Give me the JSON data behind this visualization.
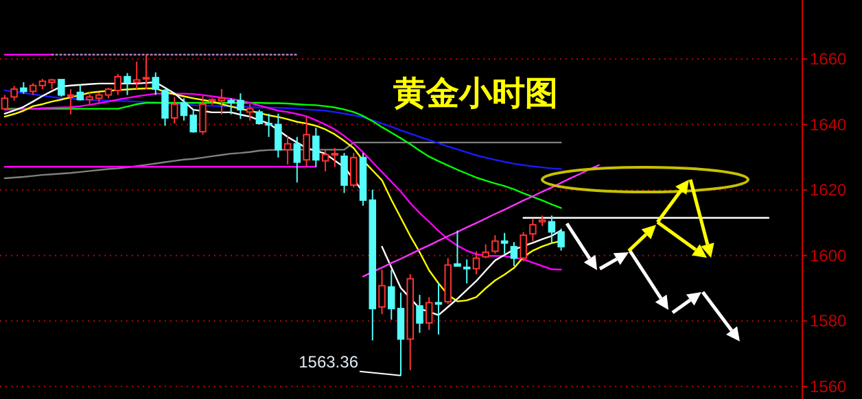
{
  "chart_data": {
    "type": "candlestick",
    "title": "黄金小时图",
    "categories": [
      null,
      null,
      null,
      null,
      null,
      null,
      null,
      null,
      null,
      null,
      null,
      null,
      null,
      null,
      null,
      null,
      null,
      null,
      null,
      null,
      null,
      null,
      null,
      null,
      null,
      null,
      null,
      null,
      null,
      null,
      null,
      null,
      null,
      null,
      null,
      null,
      null,
      null,
      null,
      null,
      null,
      null,
      null,
      null,
      null,
      null,
      null,
      null,
      null,
      null,
      null,
      null,
      null,
      null,
      null,
      null,
      null,
      null,
      null,
      null,
      null,
      null,
      null,
      null,
      null,
      null,
      null,
      null,
      null,
      null,
      null,
      null,
      null,
      null,
      null,
      null,
      null,
      null,
      null,
      null,
      null,
      null,
      null,
      null,
      null
    ],
    "ohlc": [
      [
        1644.8,
        1649.0,
        1644.5,
        1648.0
      ],
      [
        1648.4,
        1651.8,
        1647.3,
        1650.8
      ],
      [
        1651.1,
        1652.9,
        1649.4,
        1650.1
      ],
      [
        1650.1,
        1652.6,
        1649.0,
        1651.9
      ],
      [
        1651.9,
        1653.9,
        1650.8,
        1653.2
      ],
      [
        1652.9,
        1653.9,
        1650.8,
        1653.6
      ],
      [
        1653.7,
        1653.7,
        1648.5,
        1649.0
      ],
      [
        1648.6,
        1650.8,
        1643.1,
        1649.0
      ],
      [
        1649.8,
        1652.2,
        1647.3,
        1647.6
      ],
      [
        1647.6,
        1649.8,
        1645.9,
        1648.4
      ],
      [
        1648.0,
        1649.8,
        1646.8,
        1649.0
      ],
      [
        1649.0,
        1651.2,
        1648.0,
        1650.8
      ],
      [
        1650.4,
        1655.4,
        1649.0,
        1654.6
      ],
      [
        1654.6,
        1655.7,
        1649.0,
        1652.9
      ],
      [
        1652.9,
        1659.2,
        1650.8,
        1653.6
      ],
      [
        1653.9,
        1661.3,
        1650.8,
        1654.3
      ],
      [
        1654.3,
        1655.9,
        1649.0,
        1650.8
      ],
      [
        1650.4,
        1650.8,
        1639.6,
        1642.0
      ],
      [
        1642.0,
        1648.4,
        1640.3,
        1646.2
      ],
      [
        1646.6,
        1648.0,
        1641.2,
        1642.8
      ],
      [
        1642.8,
        1644.5,
        1637.5,
        1637.8
      ],
      [
        1637.8,
        1648.7,
        1636.9,
        1646.2
      ],
      [
        1647.3,
        1648.0,
        1646.0,
        1647.6
      ],
      [
        1647.3,
        1650.8,
        1643.1,
        1648.0
      ],
      [
        1647.3,
        1648.0,
        1643.1,
        1646.6
      ],
      [
        1647.3,
        1649.5,
        1641.7,
        1644.5
      ],
      [
        1643.8,
        1646.2,
        1641.2,
        1644.8
      ],
      [
        1643.8,
        1644.5,
        1640.0,
        1640.3
      ],
      [
        1640.3,
        1643.3,
        1636.2,
        1639.9
      ],
      [
        1640.0,
        1643.3,
        1629.9,
        1632.3
      ],
      [
        1632.3,
        1636.4,
        1627.8,
        1634.1
      ],
      [
        1634.1,
        1636.2,
        1622.3,
        1628.5
      ],
      [
        1629.2,
        1642.4,
        1627.1,
        1636.9
      ],
      [
        1636.4,
        1639.0,
        1627.1,
        1629.2
      ],
      [
        1628.9,
        1632.3,
        1625.7,
        1630.8
      ],
      [
        1630.8,
        1632.8,
        1627.0,
        1631.1
      ],
      [
        1630.3,
        1631.3,
        1619.1,
        1621.5
      ],
      [
        1621.5,
        1631.3,
        1620.8,
        1629.9
      ],
      [
        1629.9,
        1631.3,
        1615.2,
        1616.9
      ],
      [
        1616.9,
        1620.1,
        1574.1,
        1583.8
      ],
      [
        1584.3,
        1595.7,
        1582.1,
        1590.8
      ],
      [
        1590.4,
        1595.7,
        1580.4,
        1583.8
      ],
      [
        1583.8,
        1588.7,
        1563.36,
        1574.5
      ],
      [
        1574.5,
        1594.3,
        1565.0,
        1592.9
      ],
      [
        1584.6,
        1588.0,
        1576.4,
        1579.4
      ],
      [
        1579.4,
        1587.3,
        1577.3,
        1585.6
      ],
      [
        1585.6,
        1591.5,
        1575.9,
        1585.2
      ],
      [
        1585.9,
        1599.2,
        1585.2,
        1597.1
      ],
      [
        1597.4,
        1607.6,
        1596.8,
        1596.8
      ],
      [
        1596.4,
        1598.8,
        1591.5,
        1596.0
      ],
      [
        1596.0,
        1601.3,
        1594.3,
        1599.2
      ],
      [
        1599.6,
        1603.4,
        1599.2,
        1601.0
      ],
      [
        1601.3,
        1606.2,
        1600.6,
        1604.4
      ],
      [
        1604.4,
        1606.9,
        1600.6,
        1603.8
      ],
      [
        1602.7,
        1604.1,
        1596.8,
        1599.2
      ],
      [
        1599.2,
        1607.2,
        1598.2,
        1606.2
      ],
      [
        1606.6,
        1611.3,
        1604.4,
        1609.4
      ],
      [
        1610.3,
        1612.2,
        1609.0,
        1610.8
      ],
      [
        1610.3,
        1612.2,
        1603.8,
        1607.2
      ],
      [
        1607.2,
        1608.2,
        1601.5,
        1602.7
      ],
      null,
      null,
      null,
      null,
      null,
      null,
      null,
      null,
      null,
      null,
      null,
      null,
      null,
      null,
      null,
      null,
      null,
      null,
      null,
      null,
      null,
      null,
      null,
      null,
      null
    ],
    "colors": [
      "#ff3232",
      "#ff3232",
      "#54fcfc",
      "#ff3232",
      "#ff3232",
      "#ff3232",
      "#54fcfc",
      "#ff3232",
      "#54fcfc",
      "#ff3232",
      "#ff3232",
      "#ff3232",
      "#ff3232",
      "#54fcfc",
      "#ff3232",
      "#ff3232",
      "#54fcfc",
      "#54fcfc",
      "#ff3232",
      "#54fcfc",
      "#54fcfc",
      "#ff3232",
      "#ff3232",
      "#ff3232",
      "#54fcfc",
      "#54fcfc",
      "#ff3232",
      "#54fcfc",
      "#54fcfc",
      "#54fcfc",
      "#ff3232",
      "#54fcfc",
      "#ff3232",
      "#54fcfc",
      "#ff3232",
      "#ff3232",
      "#54fcfc",
      "#ff3232",
      "#54fcfc",
      "#54fcfc",
      "#ff3232",
      "#54fcfc",
      "#54fcfc",
      "#ff3232",
      "#54fcfc",
      "#ff3232",
      "#54fcfc",
      "#ff3232",
      "#54fcfc",
      "#54fcfc",
      "#ff3232",
      "#ff3232",
      "#ff3232",
      "#54fcfc",
      "#54fcfc",
      "#ff3232",
      "#ff3232",
      "#ff3232",
      "#54fcfc",
      "#54fcfc",
      null,
      null,
      null,
      null,
      null,
      null,
      null,
      null,
      null,
      null,
      null,
      null,
      null,
      null,
      null,
      null,
      null,
      null,
      null,
      null,
      null,
      null,
      null,
      null,
      null
    ],
    "series": [
      {
        "type": "line",
        "color": "#808080",
        "values": [
          1623.6,
          1623.8,
          1624.0,
          1624.3,
          1624.6,
          1624.8,
          1625.0,
          1625.2,
          1625.5,
          1625.8,
          1626.1,
          1626.4,
          1626.6,
          1626.9,
          1627.3,
          1627.7,
          1628.1,
          1628.5,
          1628.9,
          1629.3,
          1629.5,
          1629.9,
          1630.3,
          1630.7,
          1631.1,
          1631.3,
          1631.6,
          1632.0,
          1632.2,
          1632.3,
          1632.3,
          1632.3,
          1632.3,
          1632.3,
          1632.3,
          1632.3,
          1632.3,
          1634.5,
          1634.5,
          1634.5,
          1634.5,
          1634.5,
          1634.5,
          1634.5,
          1634.5,
          1634.5,
          1634.5,
          1634.5,
          1634.5,
          1634.5,
          1634.5,
          1634.5,
          1634.5,
          1634.5,
          1634.5,
          1634.5,
          1634.5,
          1634.5,
          1634.5,
          1634.5,
          null,
          null,
          null,
          null,
          null,
          null,
          null,
          null,
          null,
          null,
          null,
          null,
          null,
          null,
          null,
          null,
          null,
          null,
          null,
          null,
          null,
          null,
          null,
          null,
          null
        ]
      },
      {
        "type": "line",
        "color": "#ff00ff",
        "values": [
          1661.3,
          1661.3,
          1661.3,
          1661.3,
          1661.3,
          1661.3,
          null,
          null,
          null,
          null,
          null,
          null,
          null,
          null,
          null,
          null,
          null,
          null,
          null,
          null,
          null,
          null,
          null,
          null,
          null,
          null,
          null,
          null,
          null,
          null,
          null,
          null,
          null,
          null,
          null,
          null,
          null,
          null,
          null,
          null,
          null,
          null,
          null,
          null,
          null,
          null,
          null,
          null,
          null,
          null,
          null,
          null,
          null,
          null,
          null,
          null,
          null,
          null,
          null,
          null,
          null,
          null,
          null,
          null,
          null,
          null,
          null,
          null,
          null,
          null,
          null,
          null,
          null,
          null,
          null,
          null,
          null,
          null,
          null,
          null,
          null,
          null,
          null,
          null,
          null
        ]
      },
      {
        "type": "line",
        "color": "#b080c0",
        "line_style": "dotted",
        "values": [
          null,
          null,
          null,
          null,
          null,
          1661.3,
          1661.3,
          1661.3,
          1661.3,
          1661.3,
          1661.3,
          1661.3,
          1661.3,
          1661.3,
          1661.3,
          1661.3,
          1661.3,
          1661.3,
          1661.3,
          1661.3,
          1661.3,
          1661.3,
          1661.3,
          1661.3,
          1661.3,
          1661.3,
          1661.3,
          1661.3,
          1661.3,
          1661.3,
          1661.3,
          1661.3,
          null,
          null,
          null,
          null,
          null,
          null,
          null,
          null,
          null,
          null,
          null,
          null,
          null,
          null,
          null,
          null,
          null,
          null,
          null,
          null,
          null,
          null,
          null,
          null,
          null,
          null,
          null,
          null,
          null,
          null,
          null,
          null,
          null,
          null,
          null,
          null,
          null,
          null,
          null,
          null,
          null,
          null,
          null,
          null,
          null,
          null,
          null,
          null,
          null,
          null,
          null,
          null,
          null
        ]
      },
      {
        "type": "line",
        "color": "#ff00ff",
        "values": [
          1627.1,
          1627.1,
          1627.1,
          1627.1,
          1627.1,
          1627.1,
          1627.1,
          1627.1,
          1627.1,
          1627.1,
          1627.1,
          1627.1,
          1627.1,
          1627.1,
          1627.1,
          1627.1,
          1627.1,
          1627.1,
          1627.1,
          1627.1,
          1627.1,
          1627.1,
          1627.1,
          1627.1,
          1627.1,
          1627.1,
          1627.1,
          1627.1,
          1627.1,
          1627.1,
          1627.1,
          1627.1,
          1627.1,
          1627.1,
          null,
          null,
          null,
          null,
          null,
          null,
          null,
          null,
          null,
          null,
          null,
          null,
          null,
          null,
          null,
          null,
          null,
          null,
          null,
          null,
          null,
          null,
          null,
          null,
          null,
          null,
          null,
          null,
          null,
          null,
          null,
          null,
          null,
          null,
          null,
          null,
          null,
          null,
          null,
          null,
          null,
          null,
          null,
          null,
          null,
          null,
          null,
          null,
          null,
          null,
          null
        ]
      },
      {
        "type": "line",
        "color": "#1a1aff",
        "values": [
          1650.4,
          1650.0,
          1649.6,
          1649.2,
          1648.8,
          1648.4,
          1648.1,
          1647.9,
          1647.7,
          1647.5,
          1647.4,
          1647.3,
          1647.2,
          1647.1,
          1647.0,
          1646.9,
          1646.7,
          1646.5,
          1646.3,
          1646.1,
          1645.9,
          1645.8,
          1645.7,
          1645.6,
          1645.5,
          1645.4,
          1645.3,
          1645.2,
          1645.2,
          1645.1,
          1645.0,
          1644.8,
          1644.6,
          1644.4,
          1644.2,
          1643.8,
          1643.3,
          1642.8,
          1642.2,
          1641.3,
          1640.3,
          1639.3,
          1638.2,
          1637.2,
          1636.2,
          1635.3,
          1634.3,
          1633.3,
          1632.4,
          1631.5,
          1630.6,
          1629.9,
          1629.2,
          1628.6,
          1628.0,
          1627.6,
          1627.2,
          1626.9,
          1626.6,
          1626.4,
          null,
          null,
          null,
          null,
          null,
          null,
          null,
          null,
          null,
          null,
          null,
          null,
          null,
          null,
          null,
          null,
          null,
          null,
          null,
          null,
          null,
          null,
          null,
          null,
          null
        ]
      },
      {
        "type": "line",
        "color": "#00ff00",
        "values": [
          1644.8,
          1644.8,
          1644.8,
          1644.8,
          1644.8,
          1644.8,
          1644.8,
          1644.8,
          1644.8,
          1644.8,
          1644.8,
          1644.8,
          1644.8,
          1645.5,
          1646.2,
          1646.6,
          1646.6,
          1646.6,
          1646.6,
          1646.6,
          1646.6,
          1646.6,
          1646.6,
          1646.6,
          1646.6,
          1646.6,
          1646.6,
          1646.6,
          1646.5,
          1646.5,
          1646.4,
          1646.2,
          1646.0,
          1645.9,
          1645.6,
          1645.2,
          1644.6,
          1643.8,
          1642.6,
          1641.0,
          1639.2,
          1637.5,
          1635.8,
          1634.0,
          1632.0,
          1630.2,
          1628.8,
          1627.5,
          1626.2,
          1625.0,
          1623.8,
          1622.9,
          1622.0,
          1621.2,
          1620.2,
          1619.0,
          1617.9,
          1616.8,
          1615.6,
          1614.5,
          null,
          null,
          null,
          null,
          null,
          null,
          null,
          null,
          null,
          null,
          null,
          null,
          null,
          null,
          null,
          null,
          null,
          null,
          null,
          null,
          null,
          null,
          null,
          null,
          null
        ]
      },
      {
        "type": "line",
        "color": "#ff00ff",
        "values": [
          1644.5,
          1644.6,
          1644.7,
          1644.8,
          1645.0,
          1645.1,
          1645.2,
          1645.3,
          1645.6,
          1646.0,
          1646.5,
          1647.0,
          1647.6,
          1648.1,
          1648.6,
          1649.0,
          1649.4,
          1649.4,
          1649.4,
          1649.4,
          1649.3,
          1649.0,
          1648.6,
          1648.2,
          1647.8,
          1647.3,
          1646.6,
          1645.8,
          1645.0,
          1644.2,
          1643.8,
          1643.2,
          1642.5,
          1641.3,
          1640.0,
          1638.5,
          1636.5,
          1634.2,
          1631.5,
          1628.5,
          1625.5,
          1622.5,
          1619.5,
          1616.0,
          1613.0,
          1610.3,
          1607.5,
          1605.0,
          1603.0,
          1601.5,
          1600.4,
          1599.9,
          1599.9,
          1599.8,
          1599.4,
          1598.8,
          1597.8,
          1596.8,
          1595.8,
          1595.7,
          null,
          null,
          null,
          null,
          null,
          null,
          null,
          null,
          null,
          null,
          null,
          null,
          null,
          null,
          null,
          null,
          null,
          null,
          null,
          null,
          null,
          null,
          null,
          null,
          null
        ]
      },
      {
        "type": "line",
        "color": "#ffff00",
        "values": [
          1642.4,
          1643.2,
          1644.2,
          1645.6,
          1646.2,
          1647.0,
          1647.6,
          1648.3,
          1649.0,
          1649.7,
          1650.0,
          1650.3,
          1650.5,
          1650.7,
          1650.9,
          1651.0,
          1651.0,
          1650.0,
          1649.2,
          1648.6,
          1648.0,
          1647.5,
          1647.0,
          1646.2,
          1645.5,
          1644.8,
          1644.2,
          1643.5,
          1642.8,
          1642.3,
          1641.6,
          1640.8,
          1640.3,
          1639.6,
          1638.5,
          1637.0,
          1635.0,
          1632.8,
          1629.0,
          1626.0,
          1623.0,
          1617.0,
          1611.5,
          1606.0,
          1601.0,
          1595.5,
          1591.5,
          1588.0,
          1586.0,
          1586.3,
          1587.3,
          1590.0,
          1592.4,
          1594.2,
          1596.2,
          1599.5,
          1601.5,
          1602.8,
          1603.8,
          1604.4,
          null,
          null,
          null,
          null,
          null,
          null,
          null,
          null,
          null,
          null,
          null,
          null,
          null,
          null,
          null,
          null,
          null,
          null,
          null,
          null,
          null,
          null,
          null,
          null,
          null
        ]
      },
      {
        "type": "line",
        "color": "#ffffff",
        "values": [
          1643.3,
          1644.3,
          1645.4,
          1647.0,
          1648.7,
          1650.2,
          1651.6,
          1651.9,
          1652.1,
          1652.3,
          1652.5,
          1652.5,
          1652.5,
          1652.5,
          1652.5,
          1652.7,
          1652.9,
          1651.2,
          1649.5,
          1647.0,
          1644.5,
          1644.1,
          1643.7,
          1643.7,
          1643.7,
          1643.0,
          1642.4,
          1641.3,
          1640.3,
          1638.3,
          1636.2,
          1634.5,
          1632.8,
          1632.0,
          1631.1,
          1629.0,
          1627.0,
          1623.2,
          1619.4,
          null,
          1602.7,
          1596.4,
          1590.1,
          1587.0,
          1583.8,
          1582.8,
          1581.8,
          1584.3,
          1586.8,
          1589.5,
          1592.2,
          1595.4,
          1598.5,
          1600.2,
          1601.8,
          1602.9,
          1603.9,
          1605.0,
          1606.0,
          1607.7,
          null,
          null,
          null,
          null,
          null,
          null,
          null,
          null,
          null,
          null,
          null,
          null,
          null,
          null,
          null,
          null,
          null,
          null,
          null,
          null,
          null,
          null,
          null,
          null,
          null
        ]
      },
      {
        "type": "line",
        "color": "#ff33ff",
        "values": [
          null,
          null,
          null,
          null,
          null,
          null,
          null,
          null,
          null,
          null,
          null,
          null,
          null,
          null,
          null,
          null,
          null,
          null,
          null,
          null,
          null,
          null,
          null,
          null,
          null,
          null,
          null,
          null,
          null,
          null,
          null,
          null,
          null,
          null,
          null,
          null,
          null,
          null,
          1593.6,
          1595.0,
          1596.3,
          1597.7,
          1599.0,
          1600.4,
          1601.8,
          1603.1,
          1604.5,
          1605.9,
          1607.2,
          1608.6,
          1609.9,
          1611.3,
          1612.7,
          1614.0,
          1615.4,
          1616.8,
          1618.1,
          1619.5,
          1620.8,
          1622.2,
          1623.6,
          1624.9,
          1626.3,
          1627.6,
          null,
          null,
          null,
          null,
          null,
          null,
          null,
          null,
          null,
          null,
          null,
          null,
          null,
          null,
          null,
          null,
          null,
          null,
          null,
          null,
          null
        ]
      },
      {
        "type": "line",
        "color": "#ffffff",
        "values": [
          null,
          null,
          null,
          null,
          null,
          null,
          null,
          null,
          null,
          null,
          null,
          null,
          null,
          null,
          null,
          null,
          null,
          null,
          null,
          null,
          null,
          null,
          null,
          null,
          null,
          null,
          null,
          null,
          null,
          null,
          null,
          null,
          null,
          null,
          null,
          null,
          null,
          null,
          null,
          null,
          null,
          null,
          null,
          null,
          null,
          null,
          null,
          null,
          null,
          null,
          null,
          null,
          null,
          null,
          null,
          1611.5,
          1611.5,
          1611.5,
          1611.5,
          1611.5,
          1611.5,
          1611.5,
          1611.5,
          1611.5,
          1611.5,
          1611.5,
          1611.5,
          1611.5,
          1611.5,
          1611.5,
          1611.5,
          1611.5,
          1611.5,
          1611.5,
          1611.5,
          1611.5,
          1611.5,
          1611.5,
          1611.5,
          1611.5,
          1611.5,
          1611.5,
          null,
          null,
          null
        ]
      }
    ],
    "ylim": [
      1556.2,
      1678
    ],
    "yticks": [
      1560,
      1580,
      1600,
      1620,
      1640,
      1660
    ],
    "grid": "y",
    "tick_labels": "y",
    "annotations": [
      "1563.36"
    ]
  }
}
